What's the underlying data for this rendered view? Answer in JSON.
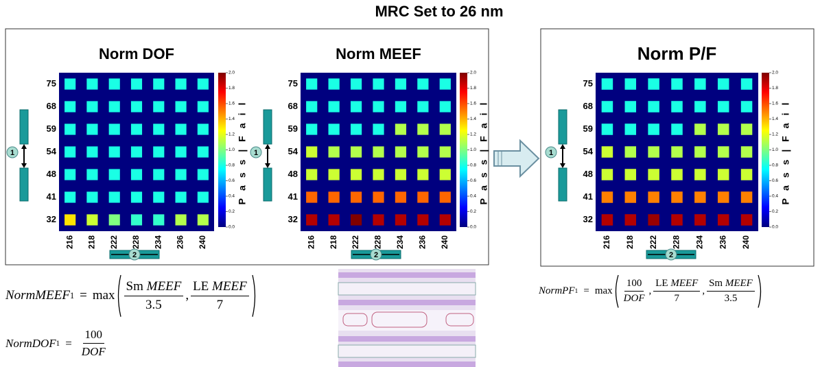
{
  "title": "MRC Set to 26 nm",
  "chart_data": [
    {
      "type": "heatmap",
      "title": "Norm DOF",
      "x_categories": [
        "216",
        "218",
        "222",
        "228",
        "234",
        "236",
        "240"
      ],
      "y_categories": [
        "75",
        "68",
        "59",
        "54",
        "48",
        "41",
        "32"
      ],
      "values": [
        [
          0.8,
          0.8,
          0.8,
          0.8,
          0.8,
          0.8,
          0.8
        ],
        [
          0.8,
          0.8,
          0.8,
          0.8,
          0.8,
          0.8,
          0.8
        ],
        [
          0.8,
          0.8,
          0.8,
          0.8,
          0.8,
          0.8,
          0.8
        ],
        [
          0.8,
          0.8,
          0.8,
          0.8,
          0.8,
          0.8,
          0.8
        ],
        [
          0.8,
          0.8,
          0.8,
          0.8,
          0.8,
          0.8,
          0.8
        ],
        [
          0.8,
          0.8,
          0.8,
          0.8,
          0.8,
          0.8,
          0.8
        ],
        [
          1.3,
          1.15,
          1.0,
          0.85,
          0.85,
          1.1,
          1.1
        ]
      ],
      "colormap": "jet",
      "background": "#00007f",
      "clim": [
        0,
        2
      ],
      "cticks": [
        {
          "value": 0,
          "label": "0.0"
        },
        {
          "value": 0.2,
          "label": "0.2"
        },
        {
          "value": 0.4,
          "label": "0.4"
        },
        {
          "value": 0.6,
          "label": "0.6"
        },
        {
          "value": 0.8,
          "label": "0.8"
        },
        {
          "value": 1,
          "label": "1.0"
        },
        {
          "value": 1.2,
          "label": "1.2"
        },
        {
          "value": 1.4,
          "label": "1.4"
        },
        {
          "value": 1.6,
          "label": "1.6"
        },
        {
          "value": 1.8,
          "label": "1.8"
        },
        {
          "value": 2,
          "label": "2.0"
        }
      ],
      "colorbar_label": "Pass|Fail",
      "x_marker": "2",
      "y_marker": "1"
    },
    {
      "type": "heatmap",
      "title": "Norm MEEF",
      "x_categories": [
        "216",
        "218",
        "222",
        "228",
        "234",
        "236",
        "240"
      ],
      "y_categories": [
        "75",
        "68",
        "59",
        "54",
        "48",
        "41",
        "32"
      ],
      "values": [
        [
          0.8,
          0.8,
          0.8,
          0.8,
          0.8,
          0.8,
          0.8
        ],
        [
          0.8,
          0.8,
          0.8,
          0.8,
          0.8,
          0.8,
          0.8
        ],
        [
          0.8,
          0.8,
          0.8,
          0.8,
          1.1,
          1.1,
          1.1
        ],
        [
          1.15,
          1.1,
          1.1,
          1.1,
          1.1,
          1.1,
          1.1
        ],
        [
          1.15,
          1.15,
          1.15,
          1.15,
          1.15,
          1.15,
          1.15
        ],
        [
          1.55,
          1.55,
          1.55,
          1.55,
          1.55,
          1.55,
          1.55
        ],
        [
          1.9,
          1.9,
          2.0,
          1.9,
          1.9,
          1.9,
          1.9
        ]
      ],
      "colormap": "jet",
      "background": "#00007f",
      "clim": [
        0,
        2
      ],
      "cticks": [
        {
          "value": 0,
          "label": "0.0"
        },
        {
          "value": 0.2,
          "label": "0.2"
        },
        {
          "value": 0.4,
          "label": "0.4"
        },
        {
          "value": 0.6,
          "label": "0.6"
        },
        {
          "value": 0.8,
          "label": "0.8"
        },
        {
          "value": 1,
          "label": "1.0"
        },
        {
          "value": 1.2,
          "label": "1.2"
        },
        {
          "value": 1.4,
          "label": "1.4"
        },
        {
          "value": 1.6,
          "label": "1.6"
        },
        {
          "value": 1.8,
          "label": "1.8"
        },
        {
          "value": 2,
          "label": "2.0"
        }
      ],
      "colorbar_label": "Pass|Fail",
      "x_marker": "2",
      "y_marker": "1"
    },
    {
      "type": "heatmap",
      "title": "Norm P/F",
      "x_categories": [
        "216",
        "218",
        "222",
        "228",
        "234",
        "236",
        "240"
      ],
      "y_categories": [
        "75",
        "68",
        "59",
        "54",
        "48",
        "41",
        "32"
      ],
      "values": [
        [
          0.8,
          0.8,
          0.8,
          0.8,
          0.8,
          0.8,
          0.8
        ],
        [
          0.8,
          0.8,
          0.8,
          0.8,
          0.8,
          0.8,
          0.8
        ],
        [
          0.8,
          0.8,
          0.8,
          0.8,
          1.1,
          1.1,
          1.1
        ],
        [
          1.15,
          1.1,
          1.1,
          1.1,
          1.1,
          1.1,
          1.1
        ],
        [
          1.15,
          1.15,
          1.15,
          1.15,
          1.15,
          1.15,
          1.15
        ],
        [
          1.5,
          1.5,
          1.5,
          1.5,
          1.5,
          1.5,
          1.5
        ],
        [
          1.9,
          1.9,
          1.95,
          1.9,
          1.9,
          1.9,
          1.9
        ]
      ],
      "colormap": "jet",
      "background": "#00007f",
      "clim": [
        0,
        2
      ],
      "cticks": [
        {
          "value": 0,
          "label": "0.0"
        },
        {
          "value": 0.2,
          "label": "0.2"
        },
        {
          "value": 0.4,
          "label": "0.4"
        },
        {
          "value": 0.6,
          "label": "0.6"
        },
        {
          "value": 0.8,
          "label": "0.8"
        },
        {
          "value": 1,
          "label": "1.0"
        },
        {
          "value": 1.2,
          "label": "1.2"
        },
        {
          "value": 1.4,
          "label": "1.4"
        },
        {
          "value": 1.6,
          "label": "1.6"
        },
        {
          "value": 1.8,
          "label": "1.8"
        },
        {
          "value": 2,
          "label": "2.0"
        }
      ],
      "colorbar_label": "Pass|Fail",
      "x_marker": "2",
      "y_marker": "1"
    }
  ],
  "formulas": [
    {
      "lhs": "NormMEEF",
      "sub": "1",
      "op": "=",
      "fn": "max",
      "sep": ",",
      "terms": [
        {
          "num": [
            {
              "text": "Sm",
              "italic": false
            },
            {
              "text": "MEEF",
              "italic": true
            }
          ],
          "den": {
            "text": "3.5",
            "italic": false
          }
        },
        {
          "num": [
            {
              "text": "LE",
              "italic": false
            },
            {
              "text": "MEEF",
              "italic": true
            }
          ],
          "den": {
            "text": "7",
            "italic": false
          }
        }
      ]
    },
    {
      "lhs": "NormDOF",
      "sub": "1",
      "op": "=",
      "terms": [
        {
          "num": [
            {
              "text": "100",
              "italic": false
            }
          ],
          "den": {
            "text": "DOF",
            "italic": true
          }
        }
      ]
    },
    {
      "lhs": "NormPF",
      "sub": "1",
      "op": "=",
      "fn": "max",
      "sep": ",",
      "terms": [
        {
          "num": [
            {
              "text": "100",
              "italic": false
            }
          ],
          "den": {
            "text": "DOF",
            "italic": true
          }
        },
        {
          "num": [
            {
              "text": "LE",
              "italic": false
            },
            {
              "text": "MEEF",
              "italic": true
            }
          ],
          "den": {
            "text": "7",
            "italic": false
          }
        },
        {
          "num": [
            {
              "text": "Sm",
              "italic": false
            },
            {
              "text": "MEEF",
              "italic": true
            }
          ],
          "den": {
            "text": "3.5",
            "italic": false
          }
        }
      ]
    }
  ]
}
